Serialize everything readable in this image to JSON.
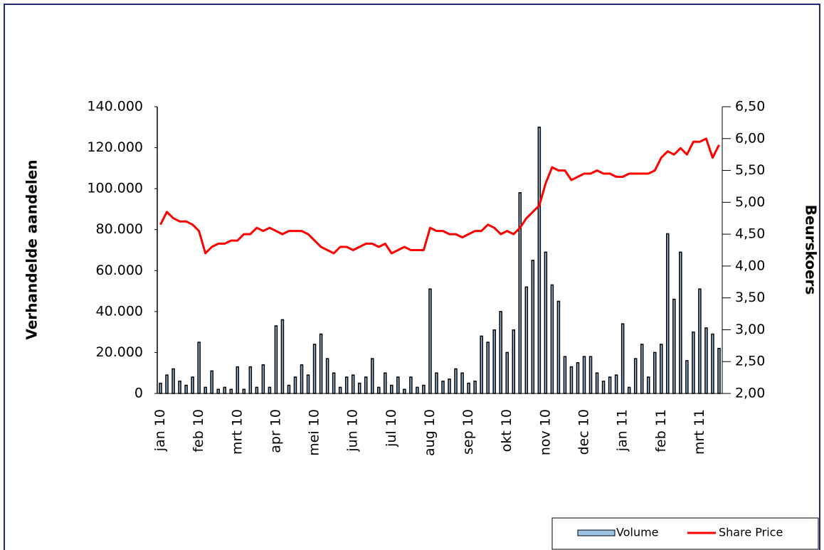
{
  "chart_data": {
    "type": "bar",
    "y_label": "Verhandelde aandelen",
    "y2_label": "Beurskoers",
    "categories": [
      "jan 10",
      null,
      null,
      null,
      null,
      null,
      "feb 10",
      null,
      null,
      null,
      null,
      null,
      "mrt 10",
      null,
      null,
      null,
      null,
      null,
      "apr 10",
      null,
      null,
      null,
      null,
      null,
      "mei 10",
      null,
      null,
      null,
      null,
      null,
      "jun 10",
      null,
      null,
      null,
      null,
      null,
      "jul 10",
      null,
      null,
      null,
      null,
      null,
      "aug 10",
      null,
      null,
      null,
      null,
      null,
      "sep 10",
      null,
      null,
      null,
      null,
      null,
      "okt 10",
      null,
      null,
      null,
      null,
      null,
      "nov 10",
      null,
      null,
      null,
      null,
      null,
      "dec 10",
      null,
      null,
      null,
      null,
      null,
      "jan 11",
      null,
      null,
      null,
      null,
      null,
      "feb 11",
      null,
      null,
      null,
      null,
      null,
      "mrt 11",
      null,
      null,
      null
    ],
    "series": [
      {
        "name": "Volume",
        "type": "bar",
        "color": "#9cc3e6",
        "axis": "y",
        "values": [
          5000,
          9000,
          12000,
          6000,
          4000,
          8000,
          25000,
          3000,
          11000,
          2000,
          3000,
          2000,
          13000,
          2000,
          13000,
          3000,
          14000,
          3000,
          33000,
          36000,
          4000,
          8000,
          14000,
          9000,
          24000,
          29000,
          17000,
          10000,
          3000,
          8000,
          9000,
          5000,
          8000,
          17000,
          3000,
          10000,
          4000,
          8000,
          2000,
          8000,
          3000,
          4000,
          51000,
          10000,
          6000,
          7000,
          12000,
          10000,
          5000,
          6000,
          28000,
          25000,
          31000,
          40000,
          20000,
          31000,
          98000,
          52000,
          65000,
          130000,
          69000,
          53000,
          45000,
          18000,
          13000,
          15000,
          18000,
          18000,
          10000,
          6000,
          8000,
          9000,
          34000,
          3000,
          17000,
          24000,
          8000,
          20000,
          24000,
          78000,
          46000,
          69000,
          16000,
          30000,
          51000,
          32000,
          29000,
          22000
        ]
      },
      {
        "name": "Share Price",
        "type": "line",
        "color": "#ff0000",
        "axis": "y2",
        "values": [
          4.65,
          4.85,
          4.75,
          4.7,
          4.7,
          4.65,
          4.55,
          4.2,
          4.3,
          4.35,
          4.35,
          4.4,
          4.4,
          4.5,
          4.5,
          4.6,
          4.55,
          4.6,
          4.55,
          4.5,
          4.55,
          4.55,
          4.55,
          4.5,
          4.4,
          4.3,
          4.25,
          4.2,
          4.3,
          4.3,
          4.25,
          4.3,
          4.35,
          4.35,
          4.3,
          4.35,
          4.2,
          4.25,
          4.3,
          4.25,
          4.25,
          4.25,
          4.6,
          4.55,
          4.55,
          4.5,
          4.5,
          4.45,
          4.5,
          4.55,
          4.55,
          4.65,
          4.6,
          4.5,
          4.55,
          4.5,
          4.6,
          4.75,
          4.85,
          4.95,
          5.3,
          5.55,
          5.5,
          5.5,
          5.35,
          5.4,
          5.45,
          5.45,
          5.5,
          5.45,
          5.45,
          5.4,
          5.4,
          5.45,
          5.45,
          5.45,
          5.45,
          5.5,
          5.7,
          5.8,
          5.75,
          5.85,
          5.75,
          5.95,
          5.95,
          6.0,
          5.7,
          5.9
        ]
      }
    ],
    "ylim": [
      0,
      140000
    ],
    "yticks": [
      {
        "value": 0,
        "label": "0"
      },
      {
        "value": 20000,
        "label": "20.000"
      },
      {
        "value": 40000,
        "label": "40.000"
      },
      {
        "value": 60000,
        "label": "60.000"
      },
      {
        "value": 80000,
        "label": "80.000"
      },
      {
        "value": 100000,
        "label": "100.000"
      },
      {
        "value": 120000,
        "label": "120.000"
      },
      {
        "value": 140000,
        "label": "140.000"
      }
    ],
    "y2lim": [
      2,
      6.5
    ],
    "y2ticks": [
      {
        "value": 2,
        "label": "2,00"
      },
      {
        "value": 2.5,
        "label": "2,50"
      },
      {
        "value": 3,
        "label": "3,00"
      },
      {
        "value": 3.5,
        "label": "3,50"
      },
      {
        "value": 4,
        "label": "4,00"
      },
      {
        "value": 4.5,
        "label": "4,50"
      },
      {
        "value": 5,
        "label": "5,00"
      },
      {
        "value": 5.5,
        "label": "5,50"
      },
      {
        "value": 6,
        "label": "6,00"
      },
      {
        "value": 6.5,
        "label": "6,50"
      }
    ],
    "legend": "bottom-right"
  }
}
